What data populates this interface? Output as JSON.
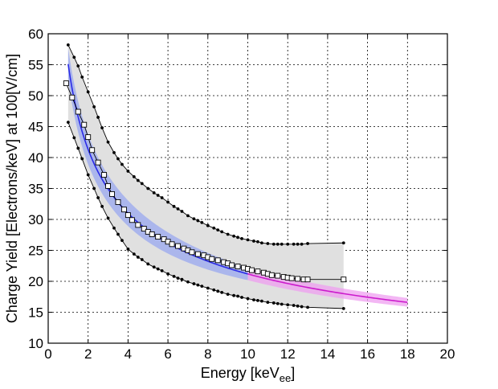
{
  "chart_data": {
    "type": "line",
    "title": "",
    "xlabel": {
      "main": "Energy [keV",
      "sub": "ee",
      "close": "]"
    },
    "ylabel": "Charge Yield [Electrons/keV] at 100[V/cm]",
    "xlim": [
      0,
      20
    ],
    "ylim": [
      10,
      60
    ],
    "xticks": [
      0,
      2,
      4,
      6,
      8,
      10,
      12,
      14,
      16,
      18,
      20
    ],
    "yticks": [
      10,
      15,
      20,
      25,
      30,
      35,
      40,
      45,
      50,
      55,
      60
    ],
    "grid": true,
    "legend": "none",
    "colors": {
      "band_fill": "#e0e0e0",
      "band_edge": "#000000",
      "model_blue": "#2a2ae6",
      "model_blue_band": "#9aa8f0",
      "model_magenta": "#cc1acc",
      "model_magenta_band": "#ef9ff0",
      "marker": "#000000"
    },
    "series": [
      {
        "role": "upper_bound",
        "x": [
          1.0,
          1.3,
          1.5,
          1.7,
          2.0,
          2.3,
          2.5,
          2.7,
          3.0,
          3.3,
          3.5,
          3.7,
          4.0,
          4.3,
          4.5,
          4.7,
          5.0,
          5.3,
          5.5,
          5.7,
          6.0,
          6.3,
          6.5,
          6.7,
          7.0,
          7.3,
          7.5,
          7.7,
          8.0,
          8.3,
          8.5,
          8.7,
          9.0,
          9.3,
          9.5,
          9.7,
          10.0,
          10.3,
          10.5,
          10.7,
          11.0,
          11.3,
          11.5,
          11.7,
          12.0,
          12.3,
          12.5,
          12.7,
          13.0,
          14.8
        ],
        "y": [
          58.2,
          56.2,
          54.8,
          53.0,
          50.6,
          48.2,
          46.5,
          44.8,
          42.5,
          40.8,
          39.8,
          38.9,
          37.8,
          36.9,
          36.3,
          35.8,
          35.0,
          34.3,
          33.9,
          33.5,
          32.8,
          32.1,
          31.7,
          31.3,
          30.6,
          30.1,
          29.8,
          29.5,
          29.0,
          28.6,
          28.3,
          28.0,
          27.6,
          27.3,
          27.1,
          26.9,
          26.7,
          26.5,
          26.4,
          26.2,
          26.1,
          26.0,
          26.0,
          26.0,
          26.0,
          26.0,
          26.0,
          26.0,
          26.1,
          26.2
        ]
      },
      {
        "role": "lower_bound",
        "x": [
          1.0,
          1.3,
          1.5,
          1.7,
          2.0,
          2.3,
          2.5,
          2.7,
          3.0,
          3.3,
          3.5,
          3.7,
          4.0,
          4.3,
          4.5,
          4.7,
          5.0,
          5.3,
          5.5,
          5.7,
          6.0,
          6.3,
          6.5,
          6.7,
          7.0,
          7.3,
          7.5,
          7.7,
          8.0,
          8.3,
          8.5,
          8.7,
          9.0,
          9.3,
          9.5,
          9.7,
          10.0,
          10.3,
          10.5,
          10.7,
          11.0,
          11.3,
          11.5,
          11.7,
          12.0,
          12.3,
          12.5,
          12.7,
          13.0,
          14.8
        ],
        "y": [
          45.7,
          43.2,
          41.5,
          39.8,
          37.2,
          35.0,
          33.5,
          32.1,
          30.2,
          28.6,
          27.6,
          26.6,
          25.2,
          24.4,
          23.9,
          23.5,
          22.8,
          22.3,
          22.0,
          21.7,
          21.2,
          20.8,
          20.5,
          20.3,
          19.9,
          19.6,
          19.4,
          19.2,
          18.9,
          18.6,
          18.4,
          18.2,
          17.9,
          17.7,
          17.6,
          17.4,
          17.2,
          17.0,
          16.9,
          16.8,
          16.6,
          16.5,
          16.4,
          16.3,
          16.2,
          16.1,
          16.0,
          15.9,
          15.8,
          15.6
        ]
      },
      {
        "role": "median",
        "x": [
          0.9,
          1.2,
          1.5,
          1.8,
          2.0,
          2.2,
          2.5,
          2.8,
          3.0,
          3.2,
          3.5,
          3.8,
          4.0,
          4.2,
          4.5,
          4.8,
          5.0,
          5.2,
          5.5,
          5.8,
          6.0,
          6.2,
          6.5,
          6.8,
          7.0,
          7.2,
          7.5,
          7.8,
          8.0,
          8.2,
          8.5,
          8.8,
          9.0,
          9.2,
          9.5,
          9.8,
          10.0,
          10.2,
          10.5,
          10.8,
          11.0,
          11.2,
          11.5,
          11.8,
          12.0,
          12.2,
          12.5,
          12.8,
          13.0,
          14.8
        ],
        "y": [
          52.0,
          49.7,
          47.4,
          45.3,
          43.3,
          41.2,
          39.2,
          37.2,
          35.4,
          34.1,
          32.8,
          31.6,
          30.7,
          29.9,
          29.1,
          28.5,
          28.0,
          27.6,
          27.2,
          26.8,
          26.4,
          26.0,
          25.7,
          25.3,
          25.0,
          24.7,
          24.4,
          24.2,
          23.9,
          23.6,
          23.4,
          23.1,
          22.9,
          22.6,
          22.4,
          22.2,
          22.0,
          21.8,
          21.6,
          21.4,
          21.2,
          21.0,
          20.9,
          20.7,
          20.6,
          20.5,
          20.4,
          20.3,
          20.3,
          20.3
        ]
      },
      {
        "role": "model_fit",
        "x_start": 1.0,
        "x_end": 18.0,
        "x_color_change": 10.0,
        "y_at_1": 55.1,
        "y_at_18": 16.6,
        "band_half_width_at_1": 2.6,
        "band_half_width_at_10": 1.0,
        "band_half_width_at_18": 0.7
      }
    ]
  }
}
